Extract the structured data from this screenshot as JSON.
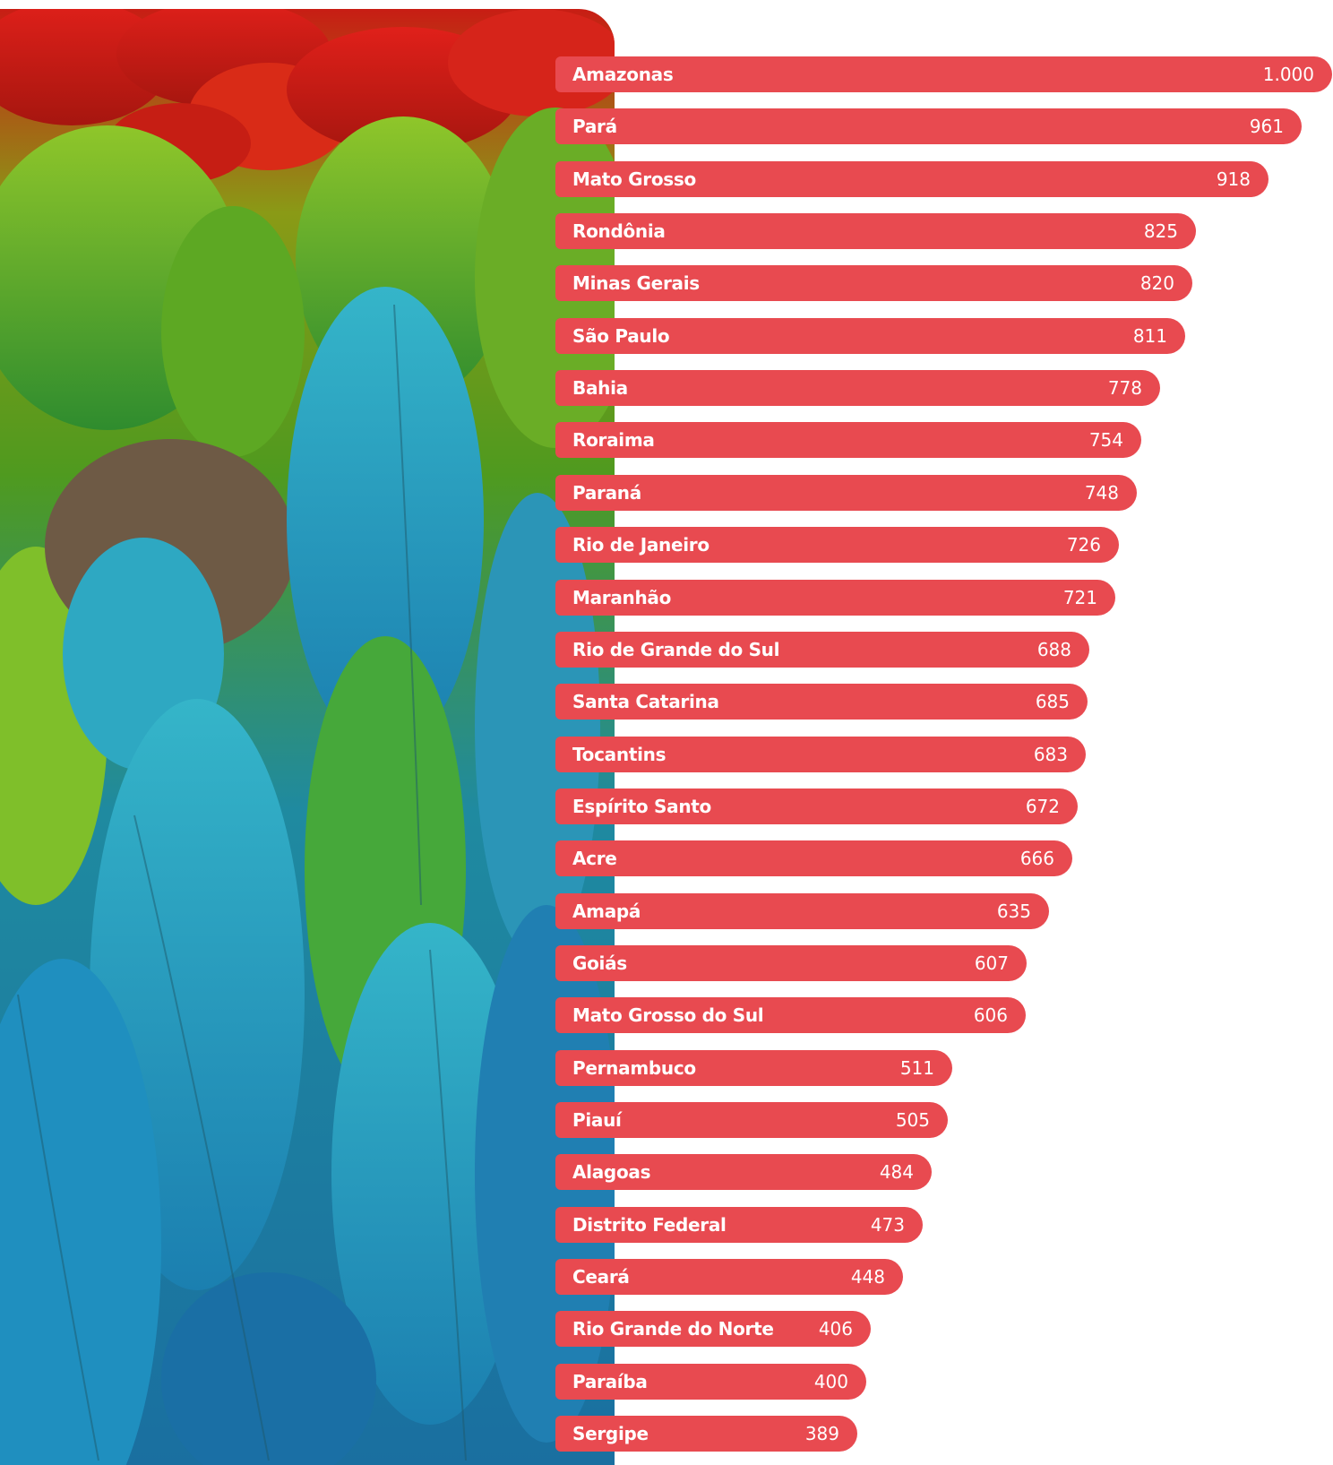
{
  "colors": {
    "bar": "#e84a50",
    "text": "#ffffff"
  },
  "image": {
    "subject": "macaw-feathers-photo"
  },
  "chart_data": {
    "type": "bar",
    "orientation": "horizontal",
    "categories": [
      "Amazonas",
      "Pará",
      "Mato Grosso",
      "Rondônia",
      "Minas Gerais",
      "São Paulo",
      "Bahia",
      "Roraima",
      "Paraná",
      "Rio de Janeiro",
      "Maranhão",
      "Rio de Grande do Sul",
      "Santa Catarina",
      "Tocantins",
      "Espírito Santo",
      "Acre",
      "Amapá",
      "Goiás",
      "Mato Grosso do Sul",
      "Pernambuco",
      "Piauí",
      "Alagoas",
      "Distrito Federal",
      "Ceará",
      "Rio Grande do Norte",
      "Paraíba",
      "Sergipe"
    ],
    "values": [
      1000,
      961,
      918,
      825,
      820,
      811,
      778,
      754,
      748,
      726,
      721,
      688,
      685,
      683,
      672,
      666,
      635,
      607,
      606,
      511,
      505,
      484,
      473,
      448,
      406,
      400,
      389
    ],
    "value_labels": [
      "1.000",
      "961",
      "918",
      "825",
      "820",
      "811",
      "778",
      "754",
      "748",
      "726",
      "721",
      "688",
      "685",
      "683",
      "672",
      "666",
      "635",
      "607",
      "606",
      "511",
      "505",
      "484",
      "473",
      "448",
      "406",
      "400",
      "389"
    ],
    "title": "",
    "xlabel": "",
    "ylabel": "",
    "grid": false,
    "legend": "none"
  }
}
